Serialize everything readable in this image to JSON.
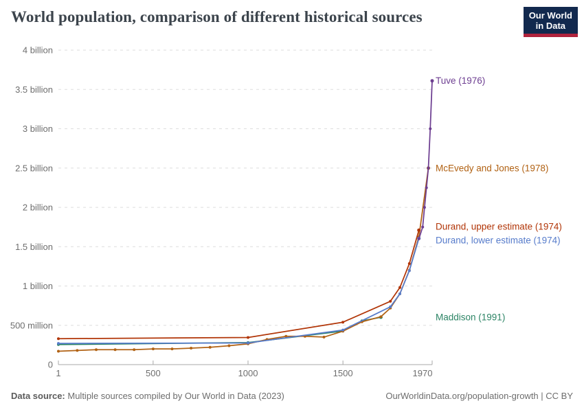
{
  "chart_data": {
    "type": "line",
    "title": "World population, comparison of different historical sources",
    "xlabel": "",
    "ylabel": "",
    "x_axis": {
      "min": 1,
      "max": 1970,
      "ticks": [
        {
          "v": 1,
          "label": "1"
        },
        {
          "v": 500,
          "label": "500"
        },
        {
          "v": 1000,
          "label": "1000"
        },
        {
          "v": 1500,
          "label": "1500"
        },
        {
          "v": 1970,
          "label": "1970"
        }
      ]
    },
    "y_axis": {
      "min": 0,
      "max": 4000,
      "unit": "million people",
      "ticks": [
        {
          "v": 0,
          "label": "0"
        },
        {
          "v": 500,
          "label": "500 million"
        },
        {
          "v": 1000,
          "label": "1 billion"
        },
        {
          "v": 1500,
          "label": "1.5 billion"
        },
        {
          "v": 2000,
          "label": "2 billion"
        },
        {
          "v": 2500,
          "label": "2.5 billion"
        },
        {
          "v": 3000,
          "label": "3 billion"
        },
        {
          "v": 3500,
          "label": "3.5 billion"
        },
        {
          "v": 4000,
          "label": "4 billion"
        }
      ]
    },
    "grid": "dashed-horizontal",
    "legend": "end-of-line-labels",
    "series": [
      {
        "name": "Maddison (1991)",
        "color": "#2C8465",
        "label_dy": 0,
        "points": [
          [
            1,
            255
          ],
          [
            1000,
            280
          ],
          [
            1500,
            427
          ],
          [
            1600,
            556
          ],
          [
            1700,
            603
          ]
        ]
      },
      {
        "name": "McEvedy and Jones (1978)",
        "color": "#B16214",
        "label_dy": 0,
        "points": [
          [
            1,
            170
          ],
          [
            100,
            180
          ],
          [
            200,
            190
          ],
          [
            300,
            190
          ],
          [
            400,
            190
          ],
          [
            500,
            200
          ],
          [
            600,
            200
          ],
          [
            700,
            210
          ],
          [
            800,
            220
          ],
          [
            900,
            240
          ],
          [
            1000,
            265
          ],
          [
            1100,
            320
          ],
          [
            1200,
            360
          ],
          [
            1300,
            360
          ],
          [
            1400,
            350
          ],
          [
            1500,
            425
          ],
          [
            1600,
            545
          ],
          [
            1700,
            610
          ],
          [
            1750,
            720
          ],
          [
            1800,
            900
          ],
          [
            1850,
            1200
          ],
          [
            1900,
            1625
          ],
          [
            1950,
            2500
          ]
        ]
      },
      {
        "name": "Durand, lower estimate (1974)",
        "color": "#577CCB",
        "label_dy": 3,
        "points": [
          [
            1,
            270
          ],
          [
            1000,
            275
          ],
          [
            1500,
            440
          ],
          [
            1750,
            735
          ],
          [
            1800,
            900
          ],
          [
            1850,
            1195
          ],
          [
            1900,
            1605
          ]
        ]
      },
      {
        "name": "Durand, upper estimate (1974)",
        "color": "#B13507",
        "label_dy": -5,
        "points": [
          [
            1,
            330
          ],
          [
            1000,
            345
          ],
          [
            1500,
            540
          ],
          [
            1750,
            805
          ],
          [
            1800,
            980
          ],
          [
            1850,
            1285
          ],
          [
            1900,
            1710
          ]
        ]
      },
      {
        "name": "Tuve (1976)",
        "color": "#6D3E91",
        "label_dy": 0,
        "points": [
          [
            1900,
            1600
          ],
          [
            1920,
            1750
          ],
          [
            1930,
            2000
          ],
          [
            1940,
            2250
          ],
          [
            1950,
            2500
          ],
          [
            1960,
            3000
          ],
          [
            1970,
            3610
          ]
        ]
      }
    ]
  },
  "header": {
    "logo": {
      "line1": "Our World",
      "line2": "in Data"
    }
  },
  "footer": {
    "source_label": "Data source:",
    "source_text": "Multiple sources compiled by Our World in Data (2023)",
    "link": "OurWorldinData.org/population-growth | CC BY"
  },
  "colors": {
    "title": "#3c444c",
    "axis_text": "#6e6e6e",
    "gridline": "#dddddd",
    "axis_line": "#a8a8a8",
    "logo_bg": "#12294e",
    "logo_bar": "#b0233d"
  }
}
